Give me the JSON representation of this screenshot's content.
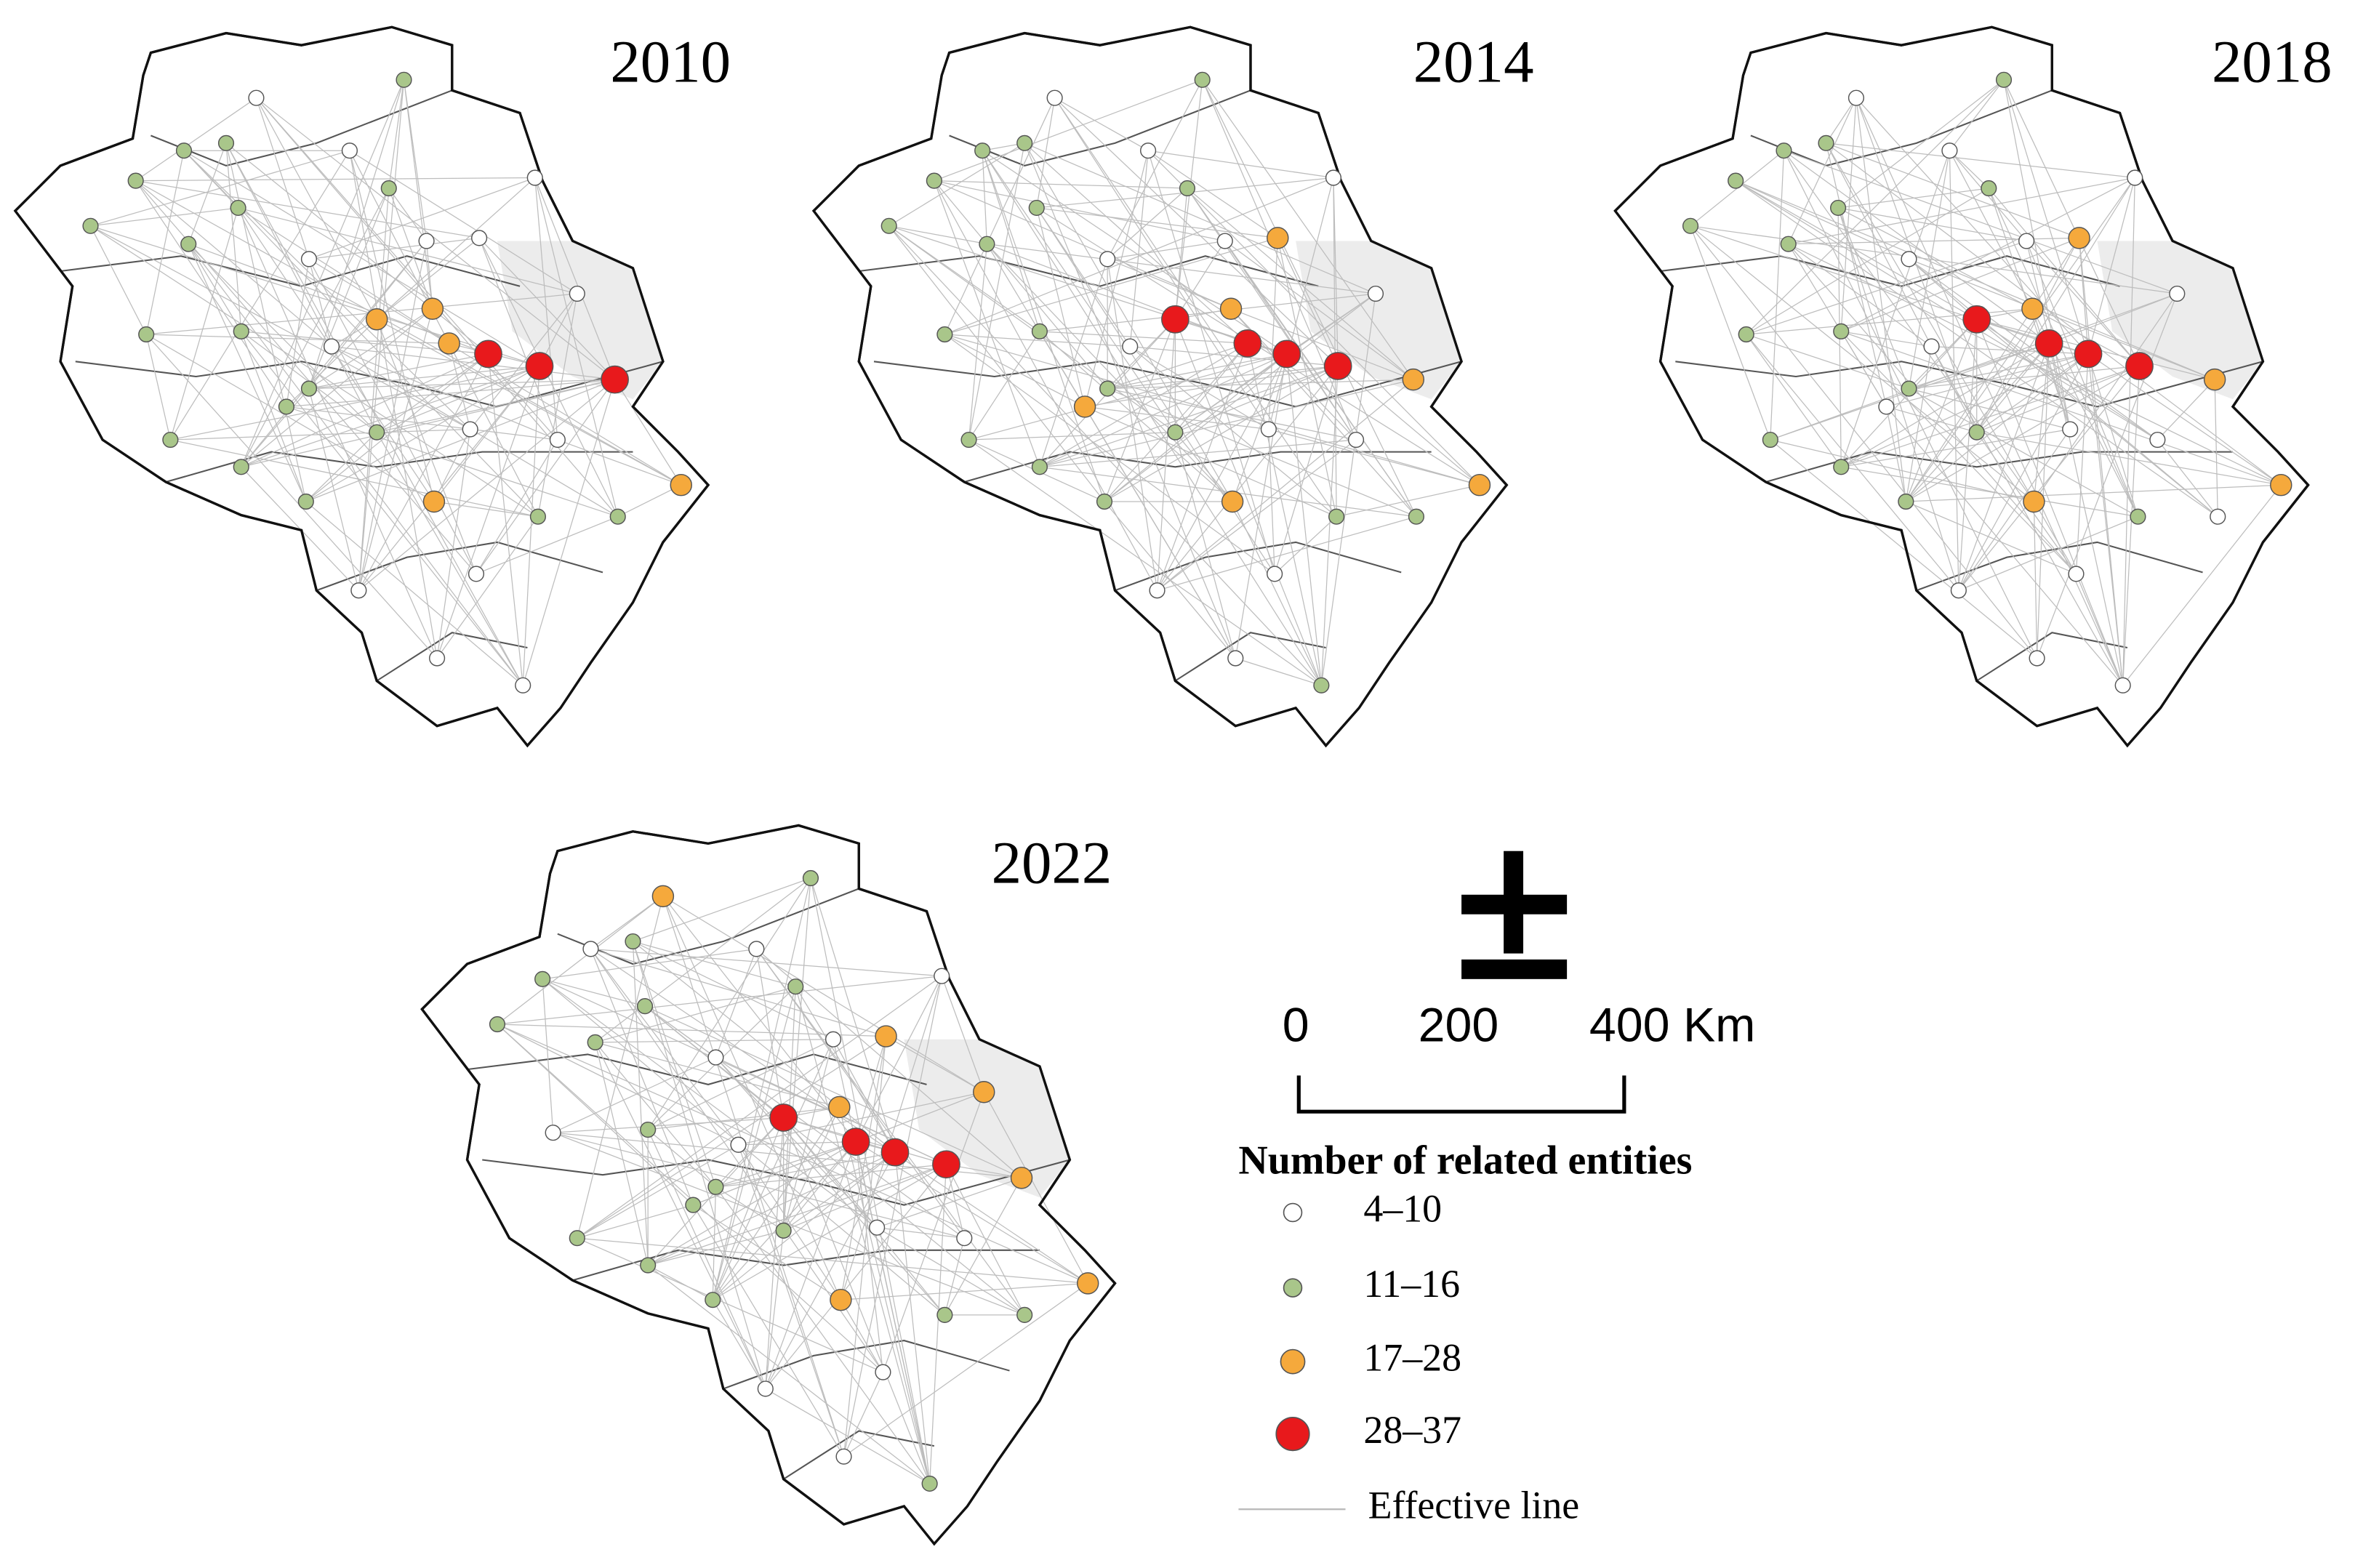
{
  "panels": [
    {
      "year": "2010"
    },
    {
      "year": "2014"
    },
    {
      "year": "2018"
    },
    {
      "year": "2022"
    }
  ],
  "scale_bar": {
    "labels": [
      "0",
      "200",
      "400 Km"
    ]
  },
  "legend": {
    "title": "Number of related entities",
    "items": [
      "4–10",
      "11–16",
      "17–28",
      "28–37"
    ],
    "line": "Effective line"
  }
}
